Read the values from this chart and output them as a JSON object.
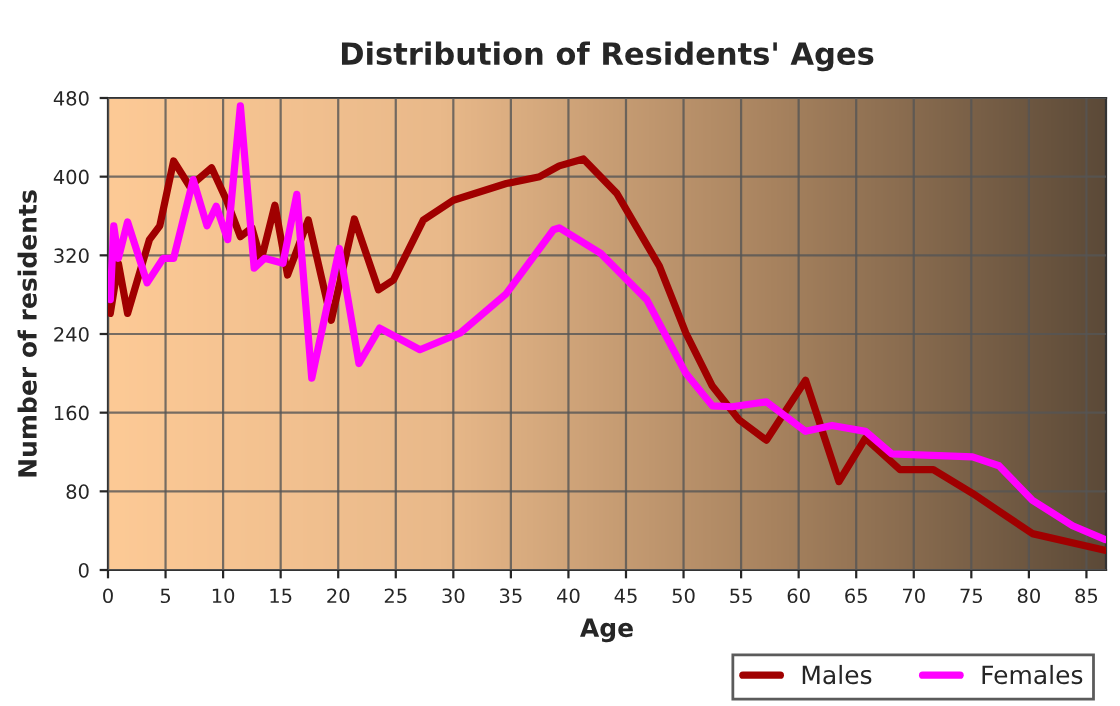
{
  "chart_data": {
    "type": "line",
    "title": "Distribution of Residents' Ages",
    "xlabel": "Age",
    "ylabel": "Number of residents",
    "xlim": [
      0,
      86.7
    ],
    "xticks": [
      0,
      5,
      10,
      15,
      20,
      25,
      30,
      35,
      40,
      45,
      50,
      55,
      60,
      65,
      70,
      75,
      80,
      85
    ],
    "ylim": [
      0,
      480
    ],
    "yticks": [
      0,
      80,
      160,
      240,
      320,
      400,
      480
    ],
    "grid": true,
    "legend": "bottom right",
    "series": [
      {
        "name": "Males",
        "color": "#a00000",
        "x": [
          0.2,
          0.9,
          1.7,
          3.6,
          4.5,
          5.7,
          7.1,
          9.0,
          10.3,
          11.5,
          12.5,
          13.3,
          14.5,
          15.6,
          17.4,
          19.4,
          21.4,
          23.5,
          24.8,
          27.4,
          30,
          34.6,
          37.5,
          39.2,
          41.3,
          44.2,
          47.9,
          50.2,
          52.5,
          54.8,
          57.2,
          60.6,
          63.5,
          65.8,
          68.8,
          71.7,
          75.1,
          80.3,
          86.6
        ],
        "values": [
          261,
          312,
          261,
          336,
          350,
          416,
          390,
          409,
          376,
          339,
          348,
          315,
          371,
          300,
          356,
          254,
          357,
          285,
          295,
          356,
          376,
          393,
          400,
          411,
          418,
          383,
          309,
          241,
          187,
          153,
          132,
          193,
          90,
          134,
          102,
          102,
          78,
          37,
          20
        ]
      },
      {
        "name": "Females",
        "color": "#ff00ff",
        "x": [
          0.2,
          0.5,
          0.9,
          1.7,
          3.4,
          4.8,
          5.7,
          7.4,
          8.6,
          9.4,
          10.4,
          11.5,
          12.7,
          13.6,
          15.2,
          16.4,
          17.7,
          20.1,
          21.8,
          23.6,
          27.1,
          30.6,
          34.6,
          38.7,
          39.2,
          42.8,
          46.8,
          50.2,
          52.5,
          54.2,
          57.2,
          60.6,
          62.9,
          65.8,
          68.1,
          75.1,
          77.4,
          80.3,
          83.8,
          86.6
        ],
        "values": [
          275,
          350,
          317,
          354,
          292,
          317,
          317,
          397,
          350,
          370,
          336,
          472,
          307,
          317,
          312,
          382,
          195,
          327,
          210,
          246,
          224,
          241,
          281,
          346,
          348,
          322,
          275,
          200,
          167,
          166,
          171,
          141,
          147,
          141,
          118,
          115,
          106,
          71,
          45,
          31
        ]
      }
    ]
  }
}
